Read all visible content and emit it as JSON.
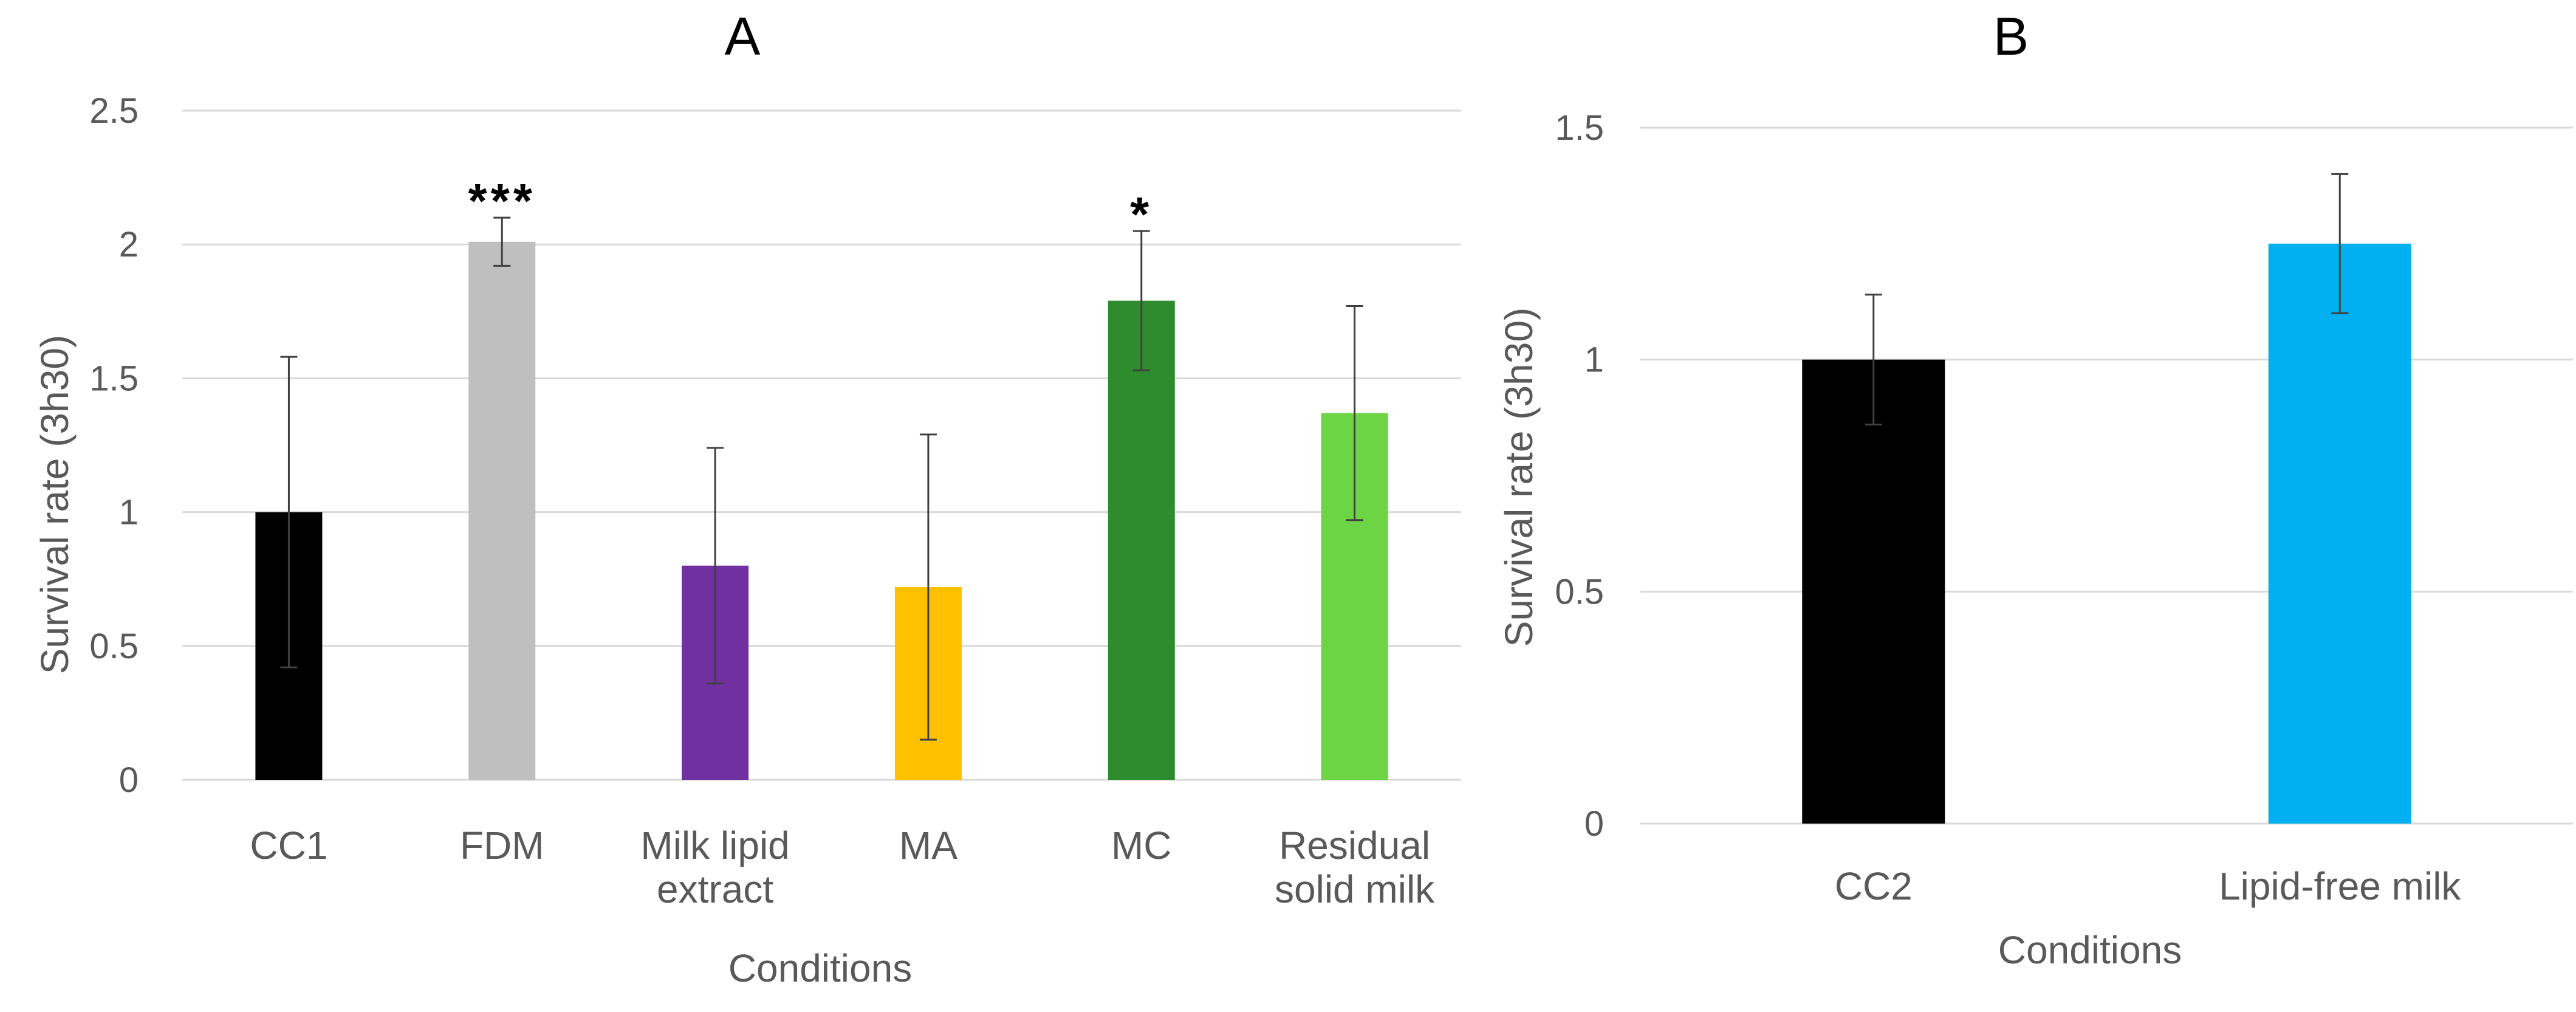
{
  "chart_data": [
    {
      "type": "bar",
      "title": "A",
      "xlabel": "Conditions",
      "ylabel": "Survival rate (3h30)",
      "ylim": [
        0,
        2.5
      ],
      "yticks": [
        "0",
        "0.5",
        "1",
        "1.5",
        "2",
        "2.5"
      ],
      "grid": true,
      "categories": [
        {
          "label": "CC1",
          "lines": [
            "CC1"
          ]
        },
        {
          "label": "FDM",
          "lines": [
            "FDM"
          ]
        },
        {
          "label": "Milk lipid extract",
          "lines": [
            "Milk lipid",
            "extract"
          ]
        },
        {
          "label": "MA",
          "lines": [
            "MA"
          ]
        },
        {
          "label": "MC",
          "lines": [
            "MC"
          ]
        },
        {
          "label": "Residual solid milk",
          "lines": [
            "Residual",
            "solid milk"
          ]
        }
      ],
      "values": [
        1.0,
        2.01,
        0.8,
        0.72,
        1.79,
        1.37
      ],
      "errors": [
        0.58,
        0.09,
        0.44,
        0.57,
        0.26,
        0.4
      ],
      "significance": [
        "",
        "***",
        "",
        "",
        "*",
        ""
      ],
      "colors": [
        "#000000",
        "#bfbfbf",
        "#7030a0",
        "#ffc000",
        "#2e8b2e",
        "#6dd444"
      ]
    },
    {
      "type": "bar",
      "title": "B",
      "xlabel": "Conditions",
      "ylabel": "Survival rate (3h30)",
      "ylim": [
        0,
        1.5
      ],
      "yticks": [
        "0",
        "0.5",
        "1",
        "1.5"
      ],
      "grid": true,
      "categories": [
        {
          "label": "CC2",
          "lines": [
            "CC2"
          ]
        },
        {
          "label": "Lipid-free milk",
          "lines": [
            "Lipid-free milk"
          ]
        }
      ],
      "values": [
        1.0,
        1.25
      ],
      "errors": [
        0.14,
        0.15
      ],
      "significance": [
        "",
        ""
      ],
      "colors": [
        "#000000",
        "#00b0f0"
      ]
    }
  ]
}
